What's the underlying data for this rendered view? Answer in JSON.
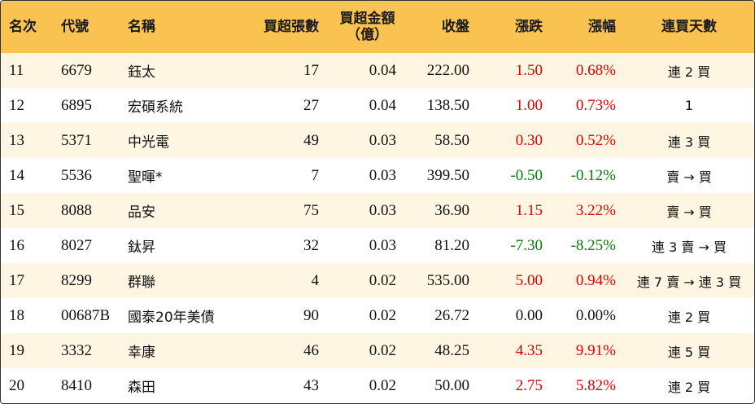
{
  "colors": {
    "header_bg": "#f9c251",
    "row_odd_bg": "#fef6e2",
    "row_even_bg": "#ffffff",
    "up": "#e00000",
    "down": "#0a7a0a"
  },
  "headers": {
    "rank": "名次",
    "code": "代號",
    "name": "名稱",
    "volume": "買超張數",
    "amount_line1": "買超金額",
    "amount_line2": "（億）",
    "close": "收盤",
    "change": "漲跌",
    "pct": "漲幅",
    "days": "連買天數"
  },
  "rows": [
    {
      "rank": "11",
      "code": "6679",
      "name": "鈺太",
      "volume": "17",
      "amount": "0.04",
      "close": "222.00",
      "change": "1.50",
      "pct": "0.68%",
      "trend": "up",
      "days": "連 2 買"
    },
    {
      "rank": "12",
      "code": "6895",
      "name": "宏碩系統",
      "volume": "27",
      "amount": "0.04",
      "close": "138.50",
      "change": "1.00",
      "pct": "0.73%",
      "trend": "up",
      "days": "1"
    },
    {
      "rank": "13",
      "code": "5371",
      "name": "中光電",
      "volume": "49",
      "amount": "0.03",
      "close": "58.50",
      "change": "0.30",
      "pct": "0.52%",
      "trend": "up",
      "days": "連 3 買"
    },
    {
      "rank": "14",
      "code": "5536",
      "name": "聖暉*",
      "volume": "7",
      "amount": "0.03",
      "close": "399.50",
      "change": "-0.50",
      "pct": "-0.12%",
      "trend": "down",
      "days": "賣 → 買"
    },
    {
      "rank": "15",
      "code": "8088",
      "name": "品安",
      "volume": "75",
      "amount": "0.03",
      "close": "36.90",
      "change": "1.15",
      "pct": "3.22%",
      "trend": "up",
      "days": "賣 → 買"
    },
    {
      "rank": "16",
      "code": "8027",
      "name": "鈦昇",
      "volume": "32",
      "amount": "0.03",
      "close": "81.20",
      "change": "-7.30",
      "pct": "-8.25%",
      "trend": "down",
      "days": "連 3 賣 → 買"
    },
    {
      "rank": "17",
      "code": "8299",
      "name": "群聯",
      "volume": "4",
      "amount": "0.02",
      "close": "535.00",
      "change": "5.00",
      "pct": "0.94%",
      "trend": "up",
      "days": "連 7 賣 → 連 3 買"
    },
    {
      "rank": "18",
      "code": "00687B",
      "name": "國泰20年美債",
      "volume": "90",
      "amount": "0.02",
      "close": "26.72",
      "change": "0.00",
      "pct": "0.00%",
      "trend": "flat",
      "days": "連 2 買"
    },
    {
      "rank": "19",
      "code": "3332",
      "name": "幸康",
      "volume": "46",
      "amount": "0.02",
      "close": "48.25",
      "change": "4.35",
      "pct": "9.91%",
      "trend": "up",
      "days": "連 5 買"
    },
    {
      "rank": "20",
      "code": "8410",
      "name": "森田",
      "volume": "43",
      "amount": "0.02",
      "close": "50.00",
      "change": "2.75",
      "pct": "5.82%",
      "trend": "up",
      "days": "連 2 買"
    }
  ]
}
